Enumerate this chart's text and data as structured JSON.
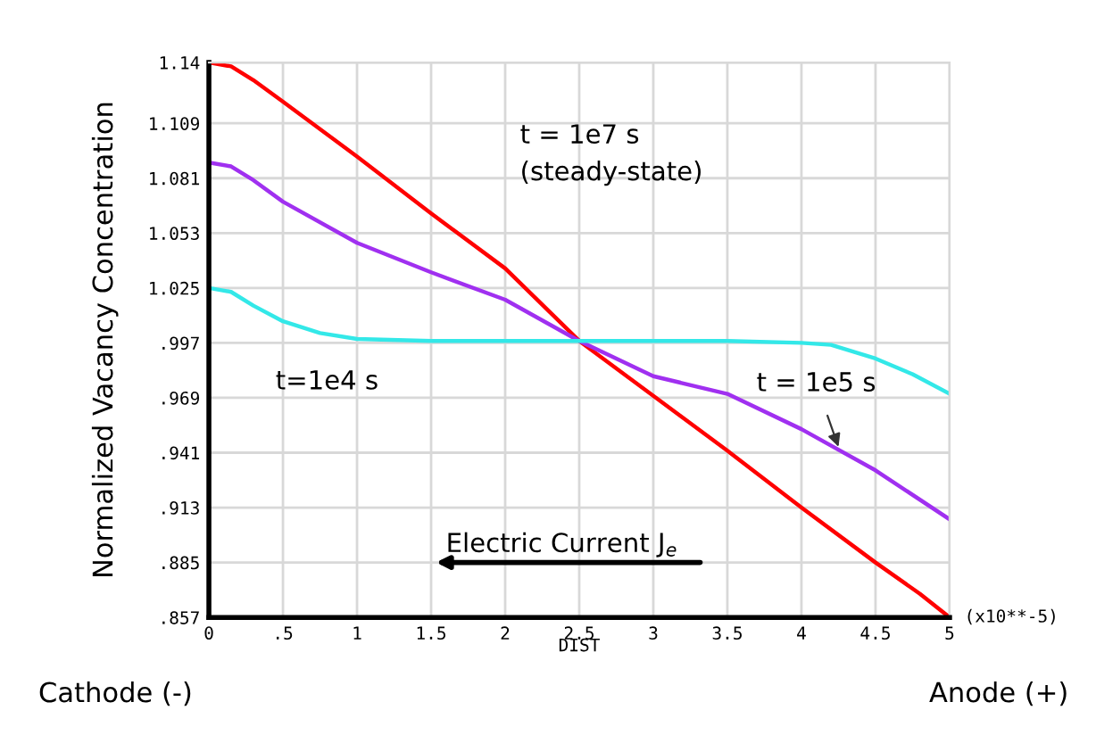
{
  "chart_data": {
    "type": "line",
    "xlabel": "DIST",
    "ylabel": "Normalized Vacancy Concentration",
    "xlim": [
      0,
      5
    ],
    "ylim": [
      0.857,
      1.14
    ],
    "xticks": [
      0,
      {
        "value": 0.5,
        "label": ".5"
      },
      1,
      1.5,
      2,
      2.5,
      3,
      3.5,
      4,
      4.5,
      5
    ],
    "yticks": [
      {
        "value": 0.857,
        "label": ".857"
      },
      {
        "value": 0.885,
        "label": ".885"
      },
      {
        "value": 0.913,
        "label": ".913"
      },
      {
        "value": 0.941,
        "label": ".941"
      },
      {
        "value": 0.969,
        "label": ".969"
      },
      {
        "value": 0.997,
        "label": ".997"
      },
      1.025,
      1.053,
      1.081,
      1.109,
      1.14
    ],
    "grid": true,
    "legend": false,
    "marker": "none",
    "line_style": "solid",
    "series": [
      {
        "color": "#ff0000",
        "x": [
          0,
          0.15,
          0.3,
          0.5,
          1,
          1.5,
          2,
          2.5,
          3,
          3.5,
          4,
          4.5,
          4.8,
          5
        ],
        "values": [
          1.14,
          1.138,
          1.131,
          1.12,
          1.092,
          1.063,
          1.035,
          0.998,
          0.97,
          0.942,
          0.913,
          0.885,
          0.869,
          0.857
        ]
      },
      {
        "color": "#a030f0",
        "x": [
          0,
          0.15,
          0.3,
          0.5,
          1,
          1.5,
          2,
          2.5,
          3,
          3.5,
          4,
          4.5,
          5
        ],
        "values": [
          1.089,
          1.087,
          1.08,
          1.069,
          1.048,
          1.033,
          1.019,
          0.998,
          0.98,
          0.971,
          0.953,
          0.932,
          0.907
        ]
      },
      {
        "color": "#33e8e8",
        "x": [
          0,
          0.15,
          0.3,
          0.5,
          0.75,
          1,
          1.5,
          2,
          2.5,
          3,
          3.5,
          4,
          4.2,
          4.5,
          4.75,
          5
        ],
        "values": [
          1.025,
          1.023,
          1.016,
          1.008,
          1.002,
          0.999,
          0.998,
          0.998,
          0.998,
          0.998,
          0.998,
          0.997,
          0.996,
          0.989,
          0.981,
          0.971
        ]
      }
    ],
    "annotations": [
      "t = 1e7 s\n(steady-state)",
      "t=1e4 s",
      {
        "text": "t = 1e5 s",
        "x": 4.25,
        "y": 0.944
      },
      "Electric Current J$_{e}$",
      "(x10**-5)",
      "Cathode (-)",
      "Anode (+)"
    ]
  }
}
